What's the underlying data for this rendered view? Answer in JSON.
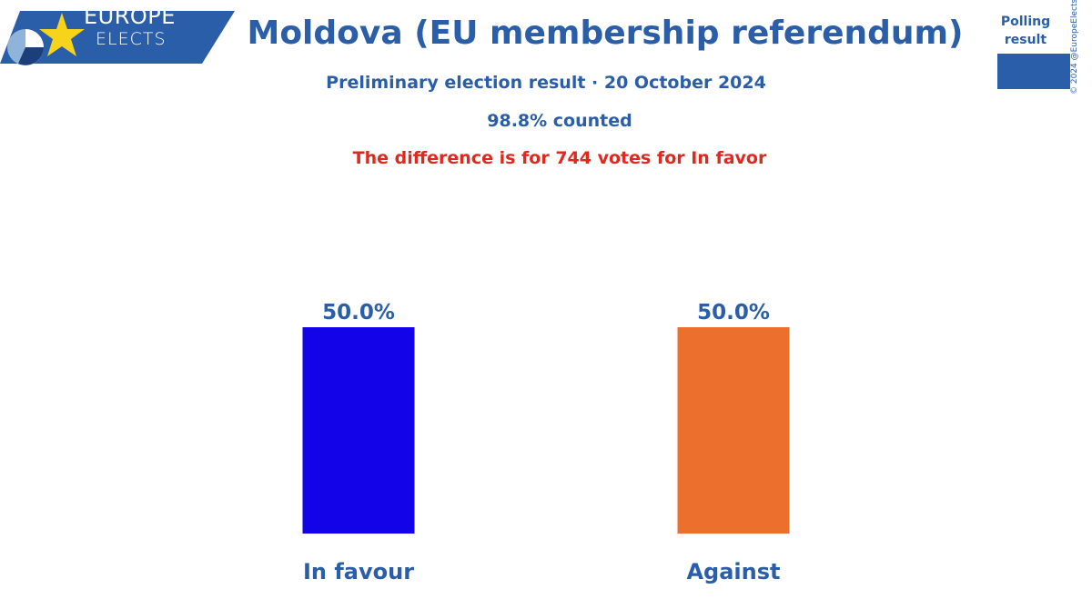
{
  "brand": {
    "line1": "EUROPE",
    "line2": "ELECTS"
  },
  "header": {
    "title": "Moldova (EU membership referendum)",
    "subtitle": "Preliminary election result · 20 October 2024",
    "counted": "98.8% counted",
    "note": "The difference is for 744 votes for In favor"
  },
  "legend": {
    "label": "Polling result",
    "color": "#2a5ea8"
  },
  "copyright": "© 2024 @EuropeElects",
  "colors": {
    "text": "#2a5ea8",
    "note": "#e0281e"
  },
  "chart_data": {
    "type": "bar",
    "categories": [
      "In favour",
      "Against"
    ],
    "values": [
      50.0,
      50.0
    ],
    "value_labels": [
      "50.0%",
      "50.0%"
    ],
    "colors": [
      "#1203e8",
      "#ed6f2d"
    ],
    "ylim": [
      0,
      50
    ]
  }
}
